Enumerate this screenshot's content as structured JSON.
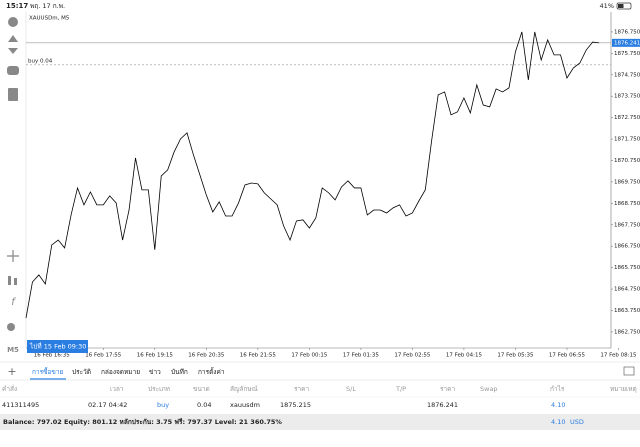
{
  "status_bar": {
    "time": "15:17",
    "date": "พฤ. 17 ก.พ.",
    "battery": "41%"
  },
  "chart": {
    "type": "line",
    "symbol_label": "XAUUSDm, M5",
    "color": "#000000",
    "categories": [
      null,
      null,
      null,
      null,
      "16 Feb 16:35",
      null,
      null,
      null,
      null,
      null,
      null,
      null,
      "16 Feb 17:55",
      null,
      null,
      null,
      null,
      null,
      null,
      null,
      "16 Feb 19:15",
      null,
      null,
      null,
      null,
      null,
      null,
      null,
      "16 Feb 20:35",
      null,
      null,
      null,
      null,
      null,
      null,
      null,
      "16 Feb 21:55",
      null,
      null,
      null,
      null,
      null,
      null,
      null,
      "17 Feb 00:15",
      null,
      null,
      null,
      null,
      null,
      null,
      null,
      "17 Feb 01:35",
      null,
      null,
      null,
      null,
      null,
      null,
      null,
      "17 Feb 02:55",
      null,
      null,
      null,
      null,
      null,
      null,
      null,
      "17 Feb 04:15",
      null,
      null,
      null,
      null,
      null,
      null,
      null,
      "17 Feb 05:35",
      null,
      null,
      null,
      null,
      null,
      null,
      null,
      "17 Feb 06:55",
      null,
      null,
      null,
      null,
      null,
      null,
      null,
      "17 Feb 08:15"
    ],
    "values": [
      1863.4,
      1865.08,
      1865.41,
      1864.99,
      1866.81,
      1867.04,
      1866.67,
      1868.21,
      1869.47,
      1868.68,
      1869.28,
      1868.68,
      1868.68,
      1869.1,
      1868.77,
      1867.04,
      1868.44,
      1870.87,
      1869.38,
      1869.38,
      1866.58,
      1870.03,
      1870.31,
      1871.15,
      1871.76,
      1872.04,
      1871.01,
      1870.08,
      1869.14,
      1868.35,
      1868.82,
      1868.16,
      1868.16,
      1868.77,
      1869.61,
      1869.7,
      1869.66,
      1869.24,
      1868.96,
      1868.68,
      1867.7,
      1867.04,
      1867.93,
      1867.98,
      1867.6,
      1868.07,
      1869.47,
      1869.24,
      1868.91,
      1869.52,
      1869.8,
      1869.47,
      1869.47,
      1868.21,
      1868.44,
      1868.44,
      1868.3,
      1868.54,
      1868.68,
      1868.16,
      1868.3,
      1868.86,
      1869.38,
      1871.71,
      1873.81,
      1873.95,
      1872.88,
      1873.02,
      1873.67,
      1872.97,
      1874.28,
      1873.34,
      1873.25,
      1874.09,
      1873.95,
      1874.14,
      1875.82,
      1876.75,
      1874.51,
      1876.75,
      1875.44,
      1876.38,
      1875.68,
      1875.68,
      1874.6,
      1875.07,
      1875.3,
      1875.91,
      1876.28,
      1876.24,
      null,
      null,
      null
    ],
    "ylim": [
      1862.0,
      1877.68
    ],
    "yticks": [
      {
        "value": 1862.75,
        "label": "1862.750"
      },
      {
        "value": 1863.75,
        "label": "1863.750"
      },
      {
        "value": 1864.75,
        "label": "1864.750"
      },
      {
        "value": 1865.75,
        "label": "1865.750"
      },
      {
        "value": 1866.75,
        "label": "1866.750"
      },
      {
        "value": 1867.75,
        "label": "1867.750"
      },
      {
        "value": 1868.75,
        "label": "1868.750"
      },
      {
        "value": 1869.75,
        "label": "1869.750"
      },
      {
        "value": 1870.75,
        "label": "1870.750"
      },
      {
        "value": 1871.75,
        "label": "1871.750"
      },
      {
        "value": 1872.75,
        "label": "1872.750"
      },
      {
        "value": 1873.75,
        "label": "1873.750"
      },
      {
        "value": 1874.75,
        "label": "1874.750"
      },
      {
        "value": 1875.75,
        "label": "1875.750"
      },
      {
        "value": 1876.75,
        "label": "1876.750"
      }
    ],
    "current_price": {
      "value": 1876.241,
      "label": "1876.241"
    },
    "order_line": {
      "value": 1875.215,
      "label": "buy 0.04"
    },
    "goto_label": "ไปที่ 15 Feb 09:30"
  },
  "tabs": [
    "การซื้อขาย",
    "ประวัติ",
    "กล่องจดหมาย",
    "ข่าว",
    "บันทึก",
    "การตั้งค่า"
  ],
  "table": {
    "headers": [
      "คำสั่ง",
      "เวลา",
      "ประเภท",
      "ขนาด",
      "สัญลักษณ์",
      "ราคา",
      "S/L",
      "T/P",
      "ราคา",
      "Swap",
      "กำไร",
      "หมายเหตุ"
    ],
    "row": {
      "order": "411311495",
      "time": "02.17 04:42",
      "type": "buy",
      "size": "0.04",
      "symbol": "xauusdm",
      "open_price": "1875.215",
      "price": "1876.241",
      "profit": "4.10"
    }
  },
  "summary": {
    "text": "Balance: 797.02 Equity: 801.12 หลักประกัน: 3.75 ฟรี: 797.37 Level: 21 360.75%",
    "total": "4.10",
    "currency": "USD"
  }
}
